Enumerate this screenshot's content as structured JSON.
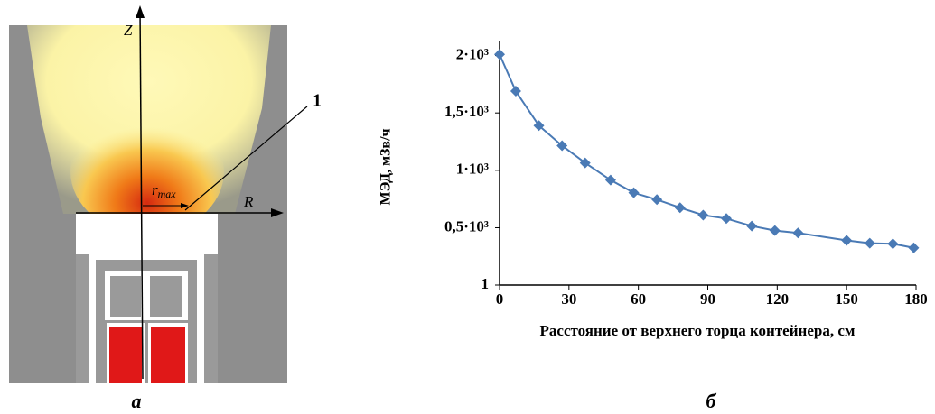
{
  "diagram": {
    "z_label": "Z",
    "r_label": "R",
    "rmax_main": "r",
    "rmax_sub": "max",
    "marker": "1",
    "caption": "а"
  },
  "chart_data": {
    "type": "line",
    "caption": "б",
    "y_label": "МЭД, мЗв/ч",
    "x_label": "Расстояние от верхнего торца контейнера, см",
    "x": [
      0,
      7,
      17,
      27,
      37,
      48,
      58,
      68,
      78,
      88,
      98,
      109,
      119,
      129,
      150,
      160,
      170,
      179
    ],
    "values": [
      2010,
      1690,
      1390,
      1215,
      1065,
      915,
      805,
      745,
      675,
      610,
      580,
      515,
      475,
      455,
      390,
      365,
      360,
      325
    ],
    "color": "#4a7ab5",
    "xlim": [
      0,
      180
    ],
    "xticks": [
      0,
      30,
      60,
      90,
      120,
      150,
      180
    ],
    "ylim": [
      1,
      2130
    ],
    "yticks": [
      1,
      {
        "value": 500,
        "label": "0,5·10³"
      },
      {
        "value": 1000,
        "label": "1·10³"
      },
      {
        "value": 1500,
        "label": "1,5·10³"
      },
      {
        "value": 2000,
        "label": "2·10³"
      }
    ],
    "grid": false,
    "markers": "diamond"
  }
}
